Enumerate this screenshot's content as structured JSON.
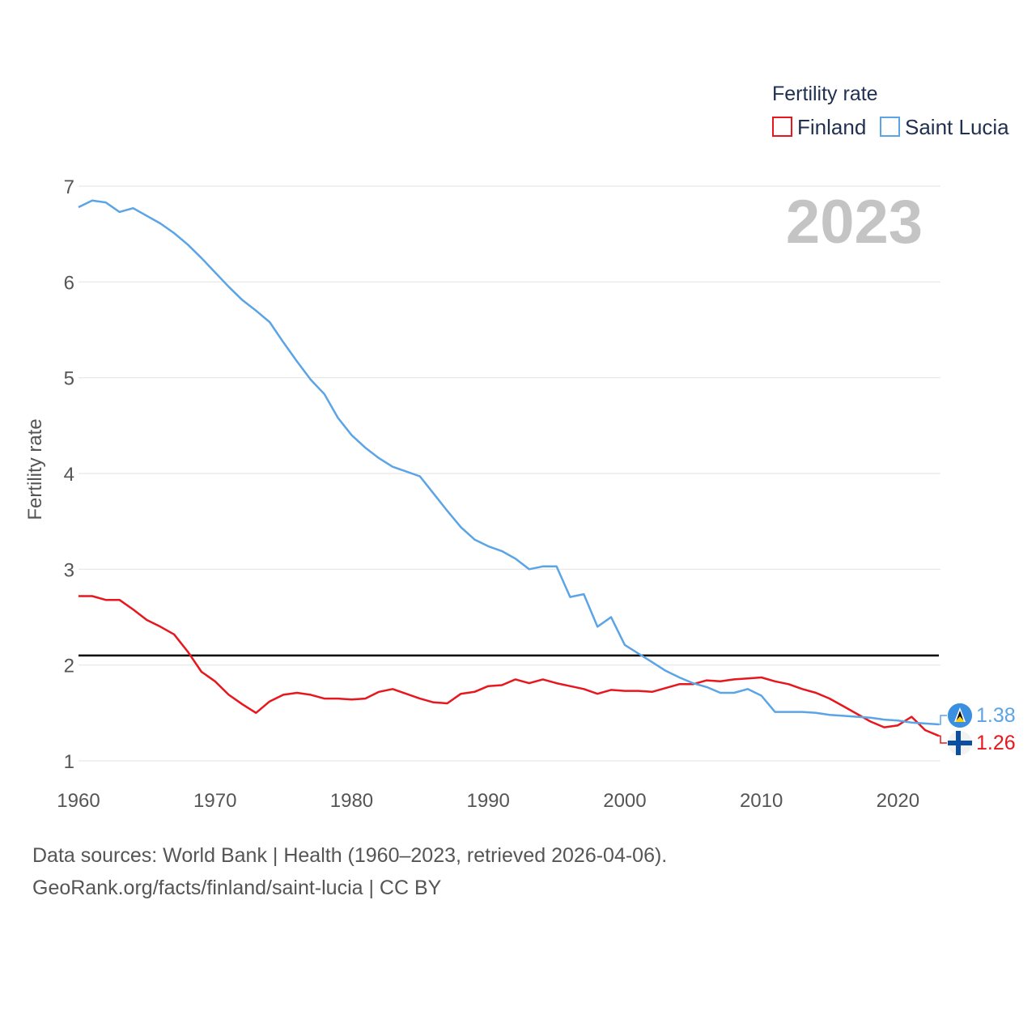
{
  "chart_data": {
    "type": "line",
    "legend_title": "Fertility rate",
    "ylabel": "Fertility rate",
    "xlabel": "",
    "current_year": "2023",
    "xlim": [
      1960,
      2023
    ],
    "ylim": [
      1,
      7
    ],
    "x_ticks": [
      "1960",
      "1970",
      "1980",
      "1990",
      "2000",
      "2010",
      "2020"
    ],
    "y_ticks": [
      "1",
      "2",
      "3",
      "4",
      "5",
      "6",
      "7"
    ],
    "reference_line": {
      "value": 2.1,
      "color": "#000000"
    },
    "x": [
      1960,
      1961,
      1962,
      1963,
      1964,
      1965,
      1966,
      1967,
      1968,
      1969,
      1970,
      1971,
      1972,
      1973,
      1974,
      1975,
      1976,
      1977,
      1978,
      1979,
      1980,
      1981,
      1982,
      1983,
      1984,
      1985,
      1986,
      1987,
      1988,
      1989,
      1990,
      1991,
      1992,
      1993,
      1994,
      1995,
      1996,
      1997,
      1998,
      1999,
      2000,
      2001,
      2002,
      2003,
      2004,
      2005,
      2006,
      2007,
      2008,
      2009,
      2010,
      2011,
      2012,
      2013,
      2014,
      2015,
      2016,
      2017,
      2018,
      2019,
      2020,
      2021,
      2022,
      2023
    ],
    "series": [
      {
        "name": "Finland",
        "color": "#e8161d",
        "end_label": "1.26",
        "flag_icon": "finland-flag-icon",
        "values": [
          2.72,
          2.72,
          2.68,
          2.68,
          2.58,
          2.47,
          2.4,
          2.32,
          2.14,
          1.93,
          1.83,
          1.69,
          1.59,
          1.5,
          1.62,
          1.69,
          1.71,
          1.69,
          1.65,
          1.65,
          1.64,
          1.65,
          1.72,
          1.75,
          1.7,
          1.65,
          1.61,
          1.6,
          1.7,
          1.72,
          1.78,
          1.79,
          1.85,
          1.81,
          1.85,
          1.81,
          1.78,
          1.75,
          1.7,
          1.74,
          1.73,
          1.73,
          1.72,
          1.76,
          1.8,
          1.8,
          1.84,
          1.83,
          1.85,
          1.86,
          1.87,
          1.83,
          1.8,
          1.75,
          1.71,
          1.65,
          1.57,
          1.49,
          1.41,
          1.35,
          1.37,
          1.46,
          1.32,
          1.26
        ]
      },
      {
        "name": "Saint Lucia",
        "color": "#5ba4e6",
        "end_label": "1.38",
        "flag_icon": "saint-lucia-flag-icon",
        "values": [
          6.78,
          6.85,
          6.83,
          6.73,
          6.77,
          6.69,
          6.61,
          6.51,
          6.39,
          6.25,
          6.1,
          5.95,
          5.81,
          5.7,
          5.58,
          5.37,
          5.17,
          4.98,
          4.83,
          4.58,
          4.4,
          4.27,
          4.16,
          4.07,
          4.02,
          3.97,
          3.79,
          3.61,
          3.44,
          3.31,
          3.24,
          3.19,
          3.11,
          3.0,
          3.03,
          3.03,
          2.71,
          2.74,
          2.4,
          2.5,
          2.21,
          2.12,
          2.03,
          1.94,
          1.87,
          1.81,
          1.77,
          1.71,
          1.71,
          1.75,
          1.68,
          1.51,
          1.51,
          1.51,
          1.5,
          1.48,
          1.47,
          1.46,
          1.45,
          1.43,
          1.42,
          1.4,
          1.39,
          1.38
        ]
      }
    ]
  },
  "footer": {
    "sources": "Data sources: World Bank | Health (1960–2023, retrieved 2026-04-06).",
    "attribution": "GeoRank.org/facts/finland/saint-lucia | CC BY"
  }
}
